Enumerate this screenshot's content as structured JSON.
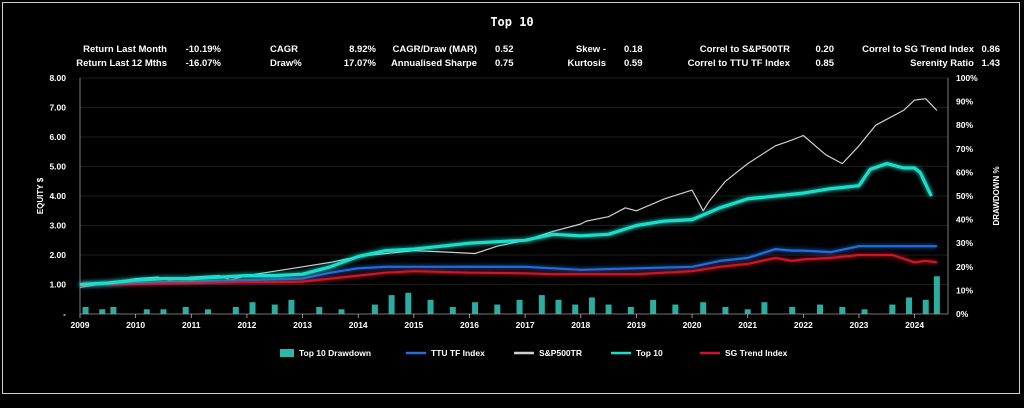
{
  "title": "Top 10",
  "stats": {
    "return_last_month_label": "Return Last Month",
    "return_last_month": "-10.19%",
    "return_12m_label": "Return Last 12 Mths",
    "return_12m": "-16.07%",
    "cagr_label": "CAGR",
    "cagr": "8.92%",
    "draw_label": "Draw%",
    "draw": "17.07%",
    "cagr_draw_label": "CAGR/Draw (MAR)",
    "cagr_draw": "0.52",
    "sharpe_label": "Annualised Sharpe",
    "sharpe": "0.75",
    "skew_label": "Skew -",
    "skew": "0.18",
    "kurtosis_label": "Kurtosis",
    "kurtosis": "0.59",
    "correl_sp_label": "Correl to S&P500TR",
    "correl_sp": "0.20",
    "correl_ttu_label": "Correl to TTU TF Index",
    "correl_ttu": "0.85",
    "correl_sg_label": "Correl to SG Trend Index",
    "correl_sg": "0.86",
    "serenity_label": "Serenity Ratio",
    "serenity": "1.43"
  },
  "chart_data": {
    "type": "line",
    "title": "Top 10",
    "ylabel": "EQUITY $",
    "y2label": "DRAWDOWN %",
    "ylim": [
      0,
      8
    ],
    "y2lim": [
      0,
      100
    ],
    "yticks": [
      "-",
      "1.00",
      "2.00",
      "3.00",
      "4.00",
      "5.00",
      "6.00",
      "7.00",
      "8.00"
    ],
    "y2ticks": [
      "0%",
      "10%",
      "20%",
      "30%",
      "40%",
      "50%",
      "60%",
      "70%",
      "80%",
      "90%",
      "100%"
    ],
    "xticks": [
      "2009",
      "2010",
      "2011",
      "2012",
      "2013",
      "2014",
      "2015",
      "2016",
      "2017",
      "2018",
      "2019",
      "2020",
      "2021",
      "2022",
      "2023",
      "2024"
    ],
    "xlim": [
      2009.0,
      2024.6
    ],
    "legend_position": "bottom",
    "colors": {
      "drawdown": "#2fb6a8",
      "ttu": "#1e6fe0",
      "sp": "#d0d0d0",
      "top10": "#19e0cc",
      "sg": "#cc1428"
    },
    "series": [
      {
        "name": "S&P500TR",
        "kind": "line",
        "x": [
          2009.0,
          2009.5,
          2010.0,
          2010.4,
          2010.6,
          2011.0,
          2011.5,
          2011.7,
          2012.0,
          2012.5,
          2013.0,
          2013.5,
          2014.0,
          2014.5,
          2015.0,
          2015.6,
          2016.1,
          2016.5,
          2017.0,
          2017.5,
          2018.0,
          2018.1,
          2018.5,
          2018.8,
          2019.0,
          2019.5,
          2020.0,
          2020.2,
          2020.3,
          2020.6,
          2021.0,
          2021.5,
          2021.8,
          2022.0,
          2022.4,
          2022.7,
          2022.9,
          2023.0,
          2023.3,
          2023.6,
          2023.8,
          2024.0,
          2024.2,
          2024.3,
          2024.4
        ],
        "values": [
          0.9,
          1.05,
          1.2,
          1.25,
          1.15,
          1.25,
          1.3,
          1.15,
          1.3,
          1.45,
          1.6,
          1.75,
          1.95,
          2.05,
          2.15,
          2.1,
          2.05,
          2.3,
          2.5,
          2.8,
          3.05,
          3.15,
          3.3,
          3.6,
          3.5,
          3.9,
          4.2,
          3.5,
          3.8,
          4.5,
          5.1,
          5.7,
          5.9,
          6.05,
          5.4,
          5.1,
          5.5,
          5.7,
          6.4,
          6.7,
          6.9,
          7.25,
          7.3,
          7.1,
          6.9
        ]
      },
      {
        "name": "Top 10",
        "kind": "line",
        "x": [
          2009.0,
          2009.5,
          2010.0,
          2010.5,
          2011.0,
          2011.5,
          2012.0,
          2012.5,
          2013.0,
          2013.5,
          2014.0,
          2014.5,
          2015.0,
          2015.5,
          2016.0,
          2016.5,
          2017.0,
          2017.5,
          2018.0,
          2018.5,
          2019.0,
          2019.5,
          2020.0,
          2020.5,
          2021.0,
          2021.5,
          2022.0,
          2022.5,
          2023.0,
          2023.2,
          2023.5,
          2023.8,
          2024.0,
          2024.1,
          2024.2,
          2024.3
        ],
        "values": [
          1.0,
          1.05,
          1.15,
          1.2,
          1.2,
          1.25,
          1.3,
          1.3,
          1.35,
          1.6,
          1.95,
          2.15,
          2.2,
          2.3,
          2.4,
          2.45,
          2.5,
          2.7,
          2.65,
          2.7,
          3.0,
          3.15,
          3.2,
          3.6,
          3.9,
          4.0,
          4.1,
          4.25,
          4.35,
          4.9,
          5.1,
          4.95,
          4.95,
          4.8,
          4.4,
          4.0
        ]
      },
      {
        "name": "TTU TF Index",
        "kind": "line",
        "x": [
          2009.0,
          2010.0,
          2011.0,
          2012.0,
          2013.0,
          2013.5,
          2014.0,
          2014.5,
          2015.0,
          2016.0,
          2017.0,
          2017.5,
          2018.0,
          2019.0,
          2020.0,
          2020.5,
          2021.0,
          2021.5,
          2021.8,
          2022.0,
          2022.5,
          2023.0,
          2023.3,
          2023.5,
          2024.0,
          2024.4
        ],
        "values": [
          1.0,
          1.05,
          1.1,
          1.15,
          1.2,
          1.4,
          1.55,
          1.6,
          1.6,
          1.6,
          1.6,
          1.55,
          1.5,
          1.55,
          1.6,
          1.8,
          1.9,
          2.2,
          2.15,
          2.15,
          2.1,
          2.3,
          2.3,
          2.3,
          2.3,
          2.3
        ]
      },
      {
        "name": "SG Trend Index",
        "kind": "line",
        "x": [
          2009.0,
          2010.0,
          2011.0,
          2012.0,
          2012.5,
          2013.0,
          2014.0,
          2014.5,
          2015.0,
          2016.0,
          2017.0,
          2017.5,
          2018.0,
          2019.0,
          2020.0,
          2020.5,
          2021.0,
          2021.5,
          2021.8,
          2022.0,
          2022.5,
          2023.0,
          2023.3,
          2023.6,
          2024.0,
          2024.2,
          2024.4
        ],
        "values": [
          1.0,
          1.02,
          1.05,
          1.08,
          1.08,
          1.1,
          1.3,
          1.4,
          1.45,
          1.4,
          1.38,
          1.35,
          1.35,
          1.35,
          1.45,
          1.6,
          1.7,
          1.9,
          1.8,
          1.85,
          1.9,
          2.0,
          2.0,
          2.0,
          1.75,
          1.8,
          1.75
        ]
      },
      {
        "name": "Top 10 Drawdown",
        "kind": "bar",
        "x": [
          2009.1,
          2009.4,
          2009.6,
          2010.2,
          2010.5,
          2010.9,
          2011.3,
          2011.8,
          2012.1,
          2012.5,
          2012.8,
          2013.3,
          2013.7,
          2014.3,
          2014.6,
          2014.9,
          2015.3,
          2015.7,
          2016.1,
          2016.5,
          2016.9,
          2017.3,
          2017.6,
          2017.9,
          2018.2,
          2018.5,
          2018.9,
          2019.3,
          2019.7,
          2020.2,
          2020.6,
          2021.0,
          2021.3,
          2021.8,
          2022.3,
          2022.7,
          2023.1,
          2023.6,
          2023.9,
          2024.2,
          2024.4
        ],
        "values": [
          3,
          2,
          3,
          2,
          2,
          3,
          2,
          3,
          5,
          4,
          6,
          3,
          2,
          4,
          8,
          9,
          6,
          3,
          5,
          4,
          6,
          8,
          6,
          4,
          7,
          4,
          3,
          6,
          4,
          5,
          3,
          2,
          5,
          3,
          4,
          3,
          2,
          4,
          7,
          6,
          16
        ]
      }
    ]
  },
  "legend": [
    {
      "name": "Top 10 Drawdown",
      "style": "box"
    },
    {
      "name": "TTU TF Index",
      "style": "line"
    },
    {
      "name": "S&P500TR",
      "style": "line"
    },
    {
      "name": "Top 10",
      "style": "line"
    },
    {
      "name": "SG Trend Index",
      "style": "line"
    }
  ]
}
